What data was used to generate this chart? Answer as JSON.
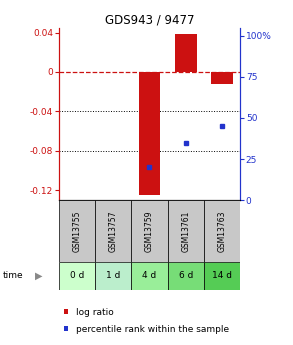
{
  "title": "GDS943 / 9477",
  "samples": [
    "GSM13755",
    "GSM13757",
    "GSM13759",
    "GSM13761",
    "GSM13763"
  ],
  "time_labels": [
    "0 d",
    "1 d",
    "4 d",
    "6 d",
    "14 d"
  ],
  "log_ratio": [
    0.0,
    0.0,
    -0.125,
    0.039,
    -0.012
  ],
  "percentile_rank": [
    null,
    null,
    20.0,
    35.0,
    45.0
  ],
  "ylim_left": [
    -0.13,
    0.045
  ],
  "ylim_right": [
    0,
    105
  ],
  "yticks_left": [
    0.04,
    0.0,
    -0.04,
    -0.08,
    -0.12
  ],
  "yticks_right": [
    100,
    75,
    50,
    25,
    0
  ],
  "ytick_labels_left": [
    "0.04",
    "0",
    "-0.04",
    "-0.08",
    "-0.12"
  ],
  "ytick_labels_right": [
    "100%",
    "75",
    "50",
    "25",
    "0"
  ],
  "bar_color": "#cc1111",
  "dot_color": "#2233cc",
  "zero_line_color": "#cc1111",
  "grid_line_color": "#000000",
  "sample_box_color": "#c8c8c8",
  "time_colors": [
    "#ccffcc",
    "#bbeecc",
    "#99ee99",
    "#77dd77",
    "#55cc55"
  ],
  "background_color": "#ffffff"
}
